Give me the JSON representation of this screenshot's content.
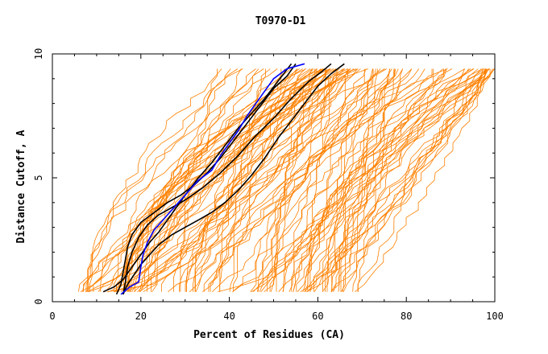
{
  "chart_data": {
    "type": "line",
    "title": "T0970-D1",
    "xlabel": "Percent of Residues (CA)",
    "ylabel": "Distance Cutoff, A",
    "xlim": [
      0,
      100
    ],
    "ylim": [
      0,
      10
    ],
    "x_ticks": [
      0,
      20,
      40,
      60,
      80,
      100
    ],
    "y_ticks": [
      0,
      5,
      10
    ],
    "x_tick_labels": [
      "0",
      "20",
      "40",
      "60",
      "80",
      "100"
    ],
    "y_tick_labels": [
      "0",
      "5",
      "10"
    ],
    "grid": false,
    "legend": "none",
    "colors": {
      "background_models": "#ff8000",
      "highlight_black": "#000000",
      "highlight_blue": "#0000ff"
    },
    "background_series_count": 120,
    "background_envelope": {
      "leftmost_x_at_bottom": 5.5,
      "rightmost_x_at_bottom": 69,
      "leftmost_x_at_top": 26,
      "rightmost_x_at_top": 100
    },
    "series": [
      {
        "color": "#000000",
        "points": [
          [
            11.5,
            0.4
          ],
          [
            14,
            0.6
          ],
          [
            16,
            0.9
          ],
          [
            18,
            1.4
          ],
          [
            20,
            1.9
          ],
          [
            22,
            2.4
          ],
          [
            24,
            2.8
          ],
          [
            26,
            3.3
          ],
          [
            28,
            3.8
          ],
          [
            30,
            4.3
          ],
          [
            33,
            5.0
          ],
          [
            36,
            5.6
          ],
          [
            39,
            6.3
          ],
          [
            42,
            7.0
          ],
          [
            45,
            7.6
          ],
          [
            48,
            8.2
          ],
          [
            51,
            8.9
          ],
          [
            54,
            9.6
          ]
        ]
      },
      {
        "color": "#000000",
        "points": [
          [
            14.5,
            0.3
          ],
          [
            15.5,
            0.7
          ],
          [
            16,
            1.2
          ],
          [
            16.5,
            1.7
          ],
          [
            17,
            2.2
          ],
          [
            18,
            2.7
          ],
          [
            20,
            3.2
          ],
          [
            23,
            3.6
          ],
          [
            26,
            4.0
          ],
          [
            29,
            4.3
          ],
          [
            32,
            4.7
          ],
          [
            35,
            5.2
          ],
          [
            38,
            5.8
          ],
          [
            41,
            6.5
          ],
          [
            44,
            7.2
          ],
          [
            47,
            7.9
          ],
          [
            50,
            8.6
          ],
          [
            53,
            9.1
          ],
          [
            55,
            9.6
          ]
        ]
      },
      {
        "color": "#000000",
        "points": [
          [
            16,
            0.3
          ],
          [
            16.5,
            0.8
          ],
          [
            17,
            1.4
          ],
          [
            18,
            2.0
          ],
          [
            19.5,
            2.6
          ],
          [
            21.5,
            3.1
          ],
          [
            24,
            3.5
          ],
          [
            27,
            3.8
          ],
          [
            30,
            4.1
          ],
          [
            34,
            4.6
          ],
          [
            38,
            5.2
          ],
          [
            42,
            5.9
          ],
          [
            46,
            6.7
          ],
          [
            50,
            7.4
          ],
          [
            54,
            8.2
          ],
          [
            58,
            8.9
          ],
          [
            61,
            9.3
          ],
          [
            63,
            9.6
          ]
        ]
      },
      {
        "color": "#000000",
        "points": [
          [
            16,
            0.3
          ],
          [
            17,
            0.7
          ],
          [
            18.5,
            1.1
          ],
          [
            20,
            1.5
          ],
          [
            22,
            1.9
          ],
          [
            24,
            2.3
          ],
          [
            27,
            2.7
          ],
          [
            30,
            3.0
          ],
          [
            33,
            3.3
          ],
          [
            36,
            3.6
          ],
          [
            39,
            4.0
          ],
          [
            42,
            4.5
          ],
          [
            45,
            5.1
          ],
          [
            48,
            5.8
          ],
          [
            51,
            6.6
          ],
          [
            54,
            7.3
          ],
          [
            57,
            8.0
          ],
          [
            60,
            8.7
          ],
          [
            63,
            9.2
          ],
          [
            66,
            9.6
          ]
        ]
      },
      {
        "color": "#0000ff",
        "points": [
          [
            15.5,
            0.3
          ],
          [
            17.5,
            0.6
          ],
          [
            19.5,
            0.8
          ],
          [
            20,
            1.4
          ],
          [
            20.5,
            1.9
          ],
          [
            21.5,
            2.4
          ],
          [
            23,
            2.9
          ],
          [
            25,
            3.3
          ],
          [
            27,
            3.7
          ],
          [
            29,
            4.1
          ],
          [
            31,
            4.5
          ],
          [
            33,
            4.9
          ],
          [
            36,
            5.3
          ],
          [
            38,
            5.9
          ],
          [
            40,
            6.4
          ],
          [
            42,
            6.9
          ],
          [
            44,
            7.5
          ],
          [
            46,
            8.0
          ],
          [
            48,
            8.5
          ],
          [
            50,
            9.0
          ],
          [
            53,
            9.4
          ],
          [
            57,
            9.6
          ]
        ]
      }
    ]
  }
}
